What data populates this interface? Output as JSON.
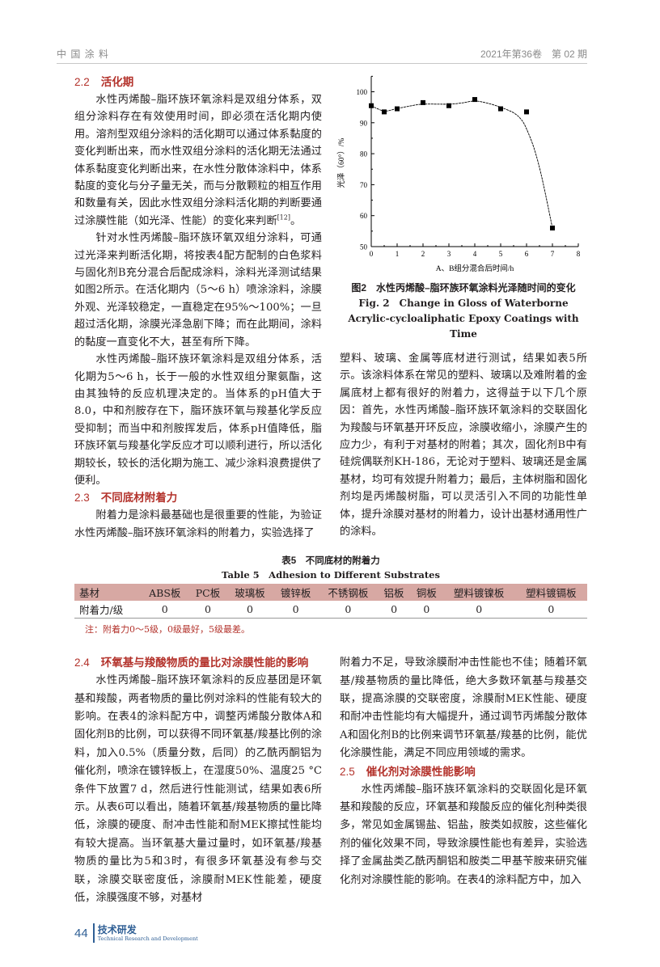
{
  "header": {
    "journal": "中 国 涂 料",
    "issue": "2021年第36卷　第 02 期"
  },
  "left_top": {
    "h22_num": "2.2",
    "h22": "活化期",
    "p1": "水性丙烯酸–脂环族环氧涂料是双组分体系，双组分涂料存在有效使用时间，即必须在活化期内使用。溶剂型双组分涂料的活化期可以通过体系黏度的变化判断出来，而水性双组分涂料的活化期无法通过体系黏度变化判断出来，在水性分散体涂料中，体系黏度的变化与分子量无关，而与分散颗粒的相互作用和数量有关，因此水性双组分涂料活化期的判断要通过涂膜性能（如光泽、性能）的变化来判断",
    "p1_ref": "[12]",
    "p1_end": "。",
    "p2": "针对水性丙烯酸–脂环族环氧双组分涂料，可通过光泽来判断活化期，将按表4配方配制的白色浆料与固化剂B充分混合后配成涂料，涂料光泽测试结果如图2所示。在活化期内（5～6 h）喷涂涂料，涂膜外观、光泽较稳定，一直稳定在95%～100%；一旦超过活化期，涂膜光泽急剧下降；而在此期间，涂料的黏度一直变化不大，甚至有所下降。",
    "p3": "水性丙烯酸–脂环族环氧涂料是双组分体系，活化期为5～6 h，长于一般的水性双组分聚氨酯，这由其独特的反应机理决定的。当体系的pH值大于8.0，中和剂胺存在下，脂环族环氧与羧基化学反应受抑制；而当中和剂胺挥发后，体系pH值降低，脂环族环氧与羧基化学反应才可以顺利进行，所以活化期较长，较长的活化期为施工、减少涂料浪费提供了便利。",
    "h23_num": "2.3",
    "h23": "不同底材附着力",
    "p4": "附着力是涂料最基础也是很重要的性能，为验证水性丙烯酸–脂环族环氧涂料的附着力，实验选择了"
  },
  "figure": {
    "caption_cn": "图2　水性丙烯酸–脂环族环氧涂料光泽随时间的变化",
    "caption_en1": "Fig. 2　Change in Gloss of Waterborne",
    "caption_en2": "Acrylic-cycloaliphatic Epoxy Coatings with Time"
  },
  "chart_data": {
    "type": "scatter",
    "xlabel": "A、B组分混合后时间/h",
    "ylabel": "光泽（60°）/%",
    "xlim": [
      0,
      8
    ],
    "ylim": [
      50,
      105
    ],
    "xticks": [
      "0",
      "1",
      "2",
      "3",
      "4",
      "5",
      "6",
      "7",
      "8"
    ],
    "yticks": [
      "50",
      "60",
      "70",
      "80",
      "90",
      "100"
    ],
    "points": {
      "x": [
        0,
        0.5,
        1,
        2,
        3,
        4,
        5,
        6,
        7
      ],
      "y": [
        95.5,
        93.5,
        94.5,
        96.5,
        95.5,
        97.5,
        94.5,
        93.5,
        56
      ]
    },
    "fit_curve": {
      "x": [
        0,
        0.5,
        1,
        1.5,
        2,
        3,
        3.5,
        4,
        4.5,
        5,
        5.5,
        5.8,
        6,
        6.3,
        6.6,
        7
      ],
      "y": [
        95.5,
        93.8,
        94.6,
        95.4,
        96,
        96,
        96.4,
        97,
        96.3,
        95,
        93.2,
        91,
        88,
        81.5,
        72,
        56
      ]
    },
    "grid": false,
    "marker_color": "#000000"
  },
  "right_top": {
    "p1": "塑料、玻璃、金属等底材进行测试，结果如表5所示。该涂料体系在常见的塑料、玻璃以及难附着的金属底材上都有很好的附着力，这得益于以下几个原因：首先，水性丙烯酸–脂环族环氧涂料的交联固化为羧酸与环氧基开环反应，涂膜收缩小，涂膜产生的应力少，有利于对基材的附着；其次，固化剂B中有硅烷偶联剂KH-186，无论对于塑料、玻璃还是金属基材，均可有效提升附着力；最后，主体树脂和固化剂均是丙烯酸树脂，可以灵活引入不同的功能性单体，提升涂膜对基材的附着力，设计出基材通用性广的涂料。"
  },
  "table5": {
    "title_cn": "表5　不同底材的附着力",
    "title_en": "Table 5　Adhesion to Different Substrates",
    "headers": [
      "基材",
      "ABS板",
      "PC板",
      "玻璃板",
      "镀锌板",
      "不锈钢板",
      "铝板",
      "铜板",
      "塑料镀镍板",
      "塑料镀镉板"
    ],
    "row": [
      "附着力/级",
      "0",
      "0",
      "0",
      "0",
      "0",
      "0",
      "0",
      "0",
      "0"
    ],
    "note": "注：附着力0～5级，0级最好，5级最差。",
    "header_color": "#d7a8a3"
  },
  "left_bottom": {
    "h24_num": "2.4",
    "h24": "环氧基与羧酸物质的量比对涂膜性能的影响",
    "p1": "水性丙烯酸–脂环族环氧涂料的反应基团是环氧基和羧酸，两者物质的量比例对涂料的性能有较大的影响。在表4的涂料配方中，调整丙烯酸分散体A和固化剂B的比例，可以获得不同环氧基/羧基比例的涂料，加入0.5%（质量分数，后同）的乙酰丙酮铝为催化剂，喷涂在镀锌板上，在湿度50%、温度25 °C条件下放置7 d，然后进行性能测试，结果如表6所示。从表6可以看出，随着环氧基/羧基物质的量比降低，涂膜的硬度、耐冲击性能和耐MEK擦拭性能均有较大提高。当环氧基大量过量时，如环氧基/羧基物质的量比为5和3时，有很多环氧基没有参与交联，涂膜交联密度低，涂膜耐MEK性能差，硬度低，涂膜强度不够，对基材"
  },
  "right_bottom": {
    "p0": "附着力不足，导致涂膜耐冲击性能也不佳；随着环氧基/羧基物质的量比降低，绝大多数环氧基与羧基交联，提高涂膜的交联密度，涂膜耐MEK性能、硬度和耐冲击性能均有大幅提升，通过调节丙烯酸分散体A和固化剂B的比例来调节环氧基/羧基的比例，能优化涂膜性能，满足不同应用领域的需求。",
    "h25_num": "2.5",
    "h25": "催化剂对涂膜性能影响",
    "p1": "水性丙烯酸–脂环族环氧涂料的交联固化是环氧基和羧酸的反应，环氧基和羧酸反应的催化剂种类很多，常见如金属锡盐、铝盐，胺类如叔胺，这些催化剂的催化效果不同，导致涂膜性能也有差异，实验选择了金属盐类乙酰丙酮铝和胺类二甲基苄胺来研究催化剂对涂膜性能的影响。在表4的涂料配方中，加入"
  },
  "footer": {
    "page": "44",
    "section_cn": "技术研发",
    "section_en": "Technical Research and Development"
  },
  "heading_color": "#b3322b"
}
